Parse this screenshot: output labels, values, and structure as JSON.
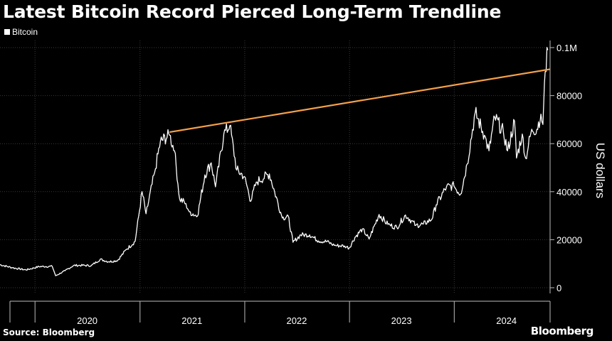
{
  "header": {
    "title": "Latest Bitcoin Record Pierced Long-Term Trendline"
  },
  "footer": {
    "source": "Source: Bloomberg",
    "brand": "Bloomberg"
  },
  "colors": {
    "background": "#000000",
    "series": "#ffffff",
    "trendline": "#f5a04a",
    "grid": "#3a3a3a"
  },
  "chart_data": {
    "type": "line",
    "title": "Latest Bitcoin Record Pierced Long-Term Trendline",
    "ylabel": "US dollars",
    "xlabel": "",
    "ylim": [
      0,
      100000
    ],
    "xlim": [
      "2019-09-01",
      "2024-11-30"
    ],
    "grid": true,
    "legend_position": "top-left",
    "y_ticks": [
      {
        "value": 0,
        "label": "0"
      },
      {
        "value": 20000,
        "label": "20000"
      },
      {
        "value": 40000,
        "label": "40000"
      },
      {
        "value": 60000,
        "label": "60000"
      },
      {
        "value": 80000,
        "label": "80000"
      },
      {
        "value": 100000,
        "label": "0.1M"
      }
    ],
    "x_ticks": [
      {
        "value": "2020-07-01",
        "label": "2020"
      },
      {
        "value": "2021-07-01",
        "label": "2021"
      },
      {
        "value": "2022-07-01",
        "label": "2022"
      },
      {
        "value": "2023-07-01",
        "label": "2023"
      },
      {
        "value": "2024-07-01",
        "label": "2024"
      }
    ],
    "x_separators": [
      "2020-01-01",
      "2021-01-01",
      "2022-01-01",
      "2023-01-01",
      "2024-01-01",
      "2024-11-30"
    ],
    "series": [
      {
        "name": "Bitcoin",
        "color": "#ffffff",
        "x": [
          "2019-09-01",
          "2019-10-15",
          "2019-12-01",
          "2020-01-15",
          "2020-03-01",
          "2020-03-13",
          "2020-04-15",
          "2020-05-15",
          "2020-06-15",
          "2020-07-15",
          "2020-08-15",
          "2020-09-15",
          "2020-10-15",
          "2020-11-15",
          "2020-12-15",
          "2021-01-08",
          "2021-01-22",
          "2021-02-21",
          "2021-03-13",
          "2021-04-14",
          "2021-05-01",
          "2021-05-19",
          "2021-06-10",
          "2021-06-22",
          "2021-07-20",
          "2021-08-15",
          "2021-09-06",
          "2021-09-21",
          "2021-10-20",
          "2021-11-10",
          "2021-12-04",
          "2021-12-31",
          "2022-01-22",
          "2022-02-10",
          "2022-03-28",
          "2022-04-15",
          "2022-05-12",
          "2022-06-01",
          "2022-06-18",
          "2022-07-15",
          "2022-08-15",
          "2022-09-15",
          "2022-10-15",
          "2022-11-09",
          "2022-12-15",
          "2022-12-31",
          "2023-01-20",
          "2023-02-15",
          "2023-03-10",
          "2023-04-14",
          "2023-05-15",
          "2023-06-15",
          "2023-07-15",
          "2023-08-20",
          "2023-09-15",
          "2023-10-15",
          "2023-10-30",
          "2023-12-05",
          "2023-12-31",
          "2024-01-23",
          "2024-02-15",
          "2024-03-14",
          "2024-04-15",
          "2024-05-01",
          "2024-05-21",
          "2024-06-20",
          "2024-07-05",
          "2024-07-29",
          "2024-08-05",
          "2024-08-25",
          "2024-09-06",
          "2024-09-27",
          "2024-10-15",
          "2024-10-29",
          "2024-11-05",
          "2024-11-13",
          "2024-11-22"
        ],
        "values": [
          9600,
          8300,
          7400,
          8800,
          8900,
          5000,
          7100,
          9300,
          9300,
          9200,
          11800,
          10800,
          11400,
          16000,
          19300,
          40000,
          30800,
          48000,
          61000,
          63500,
          57000,
          37000,
          35000,
          31600,
          29800,
          47000,
          52000,
          42000,
          64000,
          67500,
          49000,
          46300,
          36000,
          44000,
          47400,
          40000,
          29000,
          30000,
          18900,
          22000,
          22000,
          19500,
          19200,
          17600,
          17400,
          16550,
          21000,
          24500,
          20300,
          30500,
          26300,
          25100,
          30300,
          26000,
          26500,
          28500,
          34500,
          42000,
          42300,
          39000,
          51500,
          73000,
          63500,
          57000,
          71000,
          65000,
          57000,
          69500,
          54000,
          64000,
          53900,
          66000,
          66000,
          72300,
          68000,
          90000,
          99000
        ]
      }
    ],
    "annotations": [
      {
        "type": "trendline",
        "color": "#f5a04a",
        "x": [
          "2021-04-14",
          "2024-11-30"
        ],
        "values": [
          64800,
          91000
        ]
      }
    ]
  }
}
